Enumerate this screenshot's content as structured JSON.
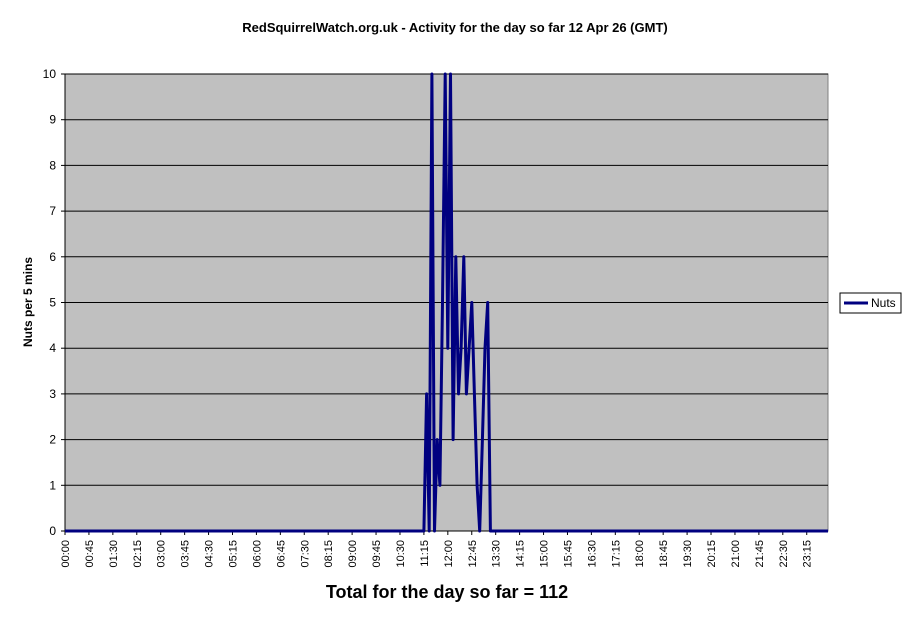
{
  "chart_data": {
    "type": "line",
    "title": "RedSquirrelWatch.org.uk - Activity for the day so far 12 Apr 26 (GMT)",
    "xlabel": "",
    "ylabel": "Nuts per 5 mins",
    "ylim": [
      0,
      10
    ],
    "yticks": [
      0,
      1,
      2,
      3,
      4,
      5,
      6,
      7,
      8,
      9,
      10
    ],
    "xlim": [
      "00:00",
      "23:55"
    ],
    "xticks": [
      "00:00",
      "00:45",
      "01:30",
      "02:15",
      "03:00",
      "03:45",
      "04:30",
      "05:15",
      "06:00",
      "06:45",
      "07:30",
      "08:15",
      "09:00",
      "09:45",
      "10:30",
      "11:15",
      "12:00",
      "12:45",
      "13:30",
      "14:15",
      "15:00",
      "15:45",
      "16:30",
      "17:15",
      "18:00",
      "18:45",
      "19:30",
      "20:15",
      "21:00",
      "21:45",
      "22:30",
      "23:15"
    ],
    "grid": true,
    "legend_position": "right",
    "plot_background": "#c0c0c0",
    "series": [
      {
        "name": "Nuts",
        "color": "#000080",
        "x": [
          "00:00",
          "11:15",
          "11:20",
          "11:25",
          "11:30",
          "11:35",
          "11:40",
          "11:45",
          "11:50",
          "11:55",
          "12:00",
          "12:05",
          "12:10",
          "12:15",
          "12:20",
          "12:25",
          "12:30",
          "12:35",
          "12:40",
          "12:45",
          "12:50",
          "12:55",
          "13:00",
          "13:05",
          "13:10",
          "13:15",
          "13:20",
          "13:25",
          "13:30",
          "13:35",
          "13:40",
          "13:45",
          "13:50",
          "13:55",
          "14:00",
          "14:05",
          "14:10",
          "23:55"
        ],
        "values": [
          0,
          0,
          3,
          0,
          10,
          0,
          2,
          1,
          5,
          10,
          4,
          10,
          2,
          6,
          3,
          4,
          6,
          3,
          4,
          5,
          3,
          1,
          0,
          2,
          4,
          5,
          0,
          0,
          0,
          0,
          0,
          0,
          0,
          0,
          0,
          0,
          0,
          0
        ]
      }
    ]
  },
  "footer": {
    "total_text": "Total for the day so far = 112"
  }
}
